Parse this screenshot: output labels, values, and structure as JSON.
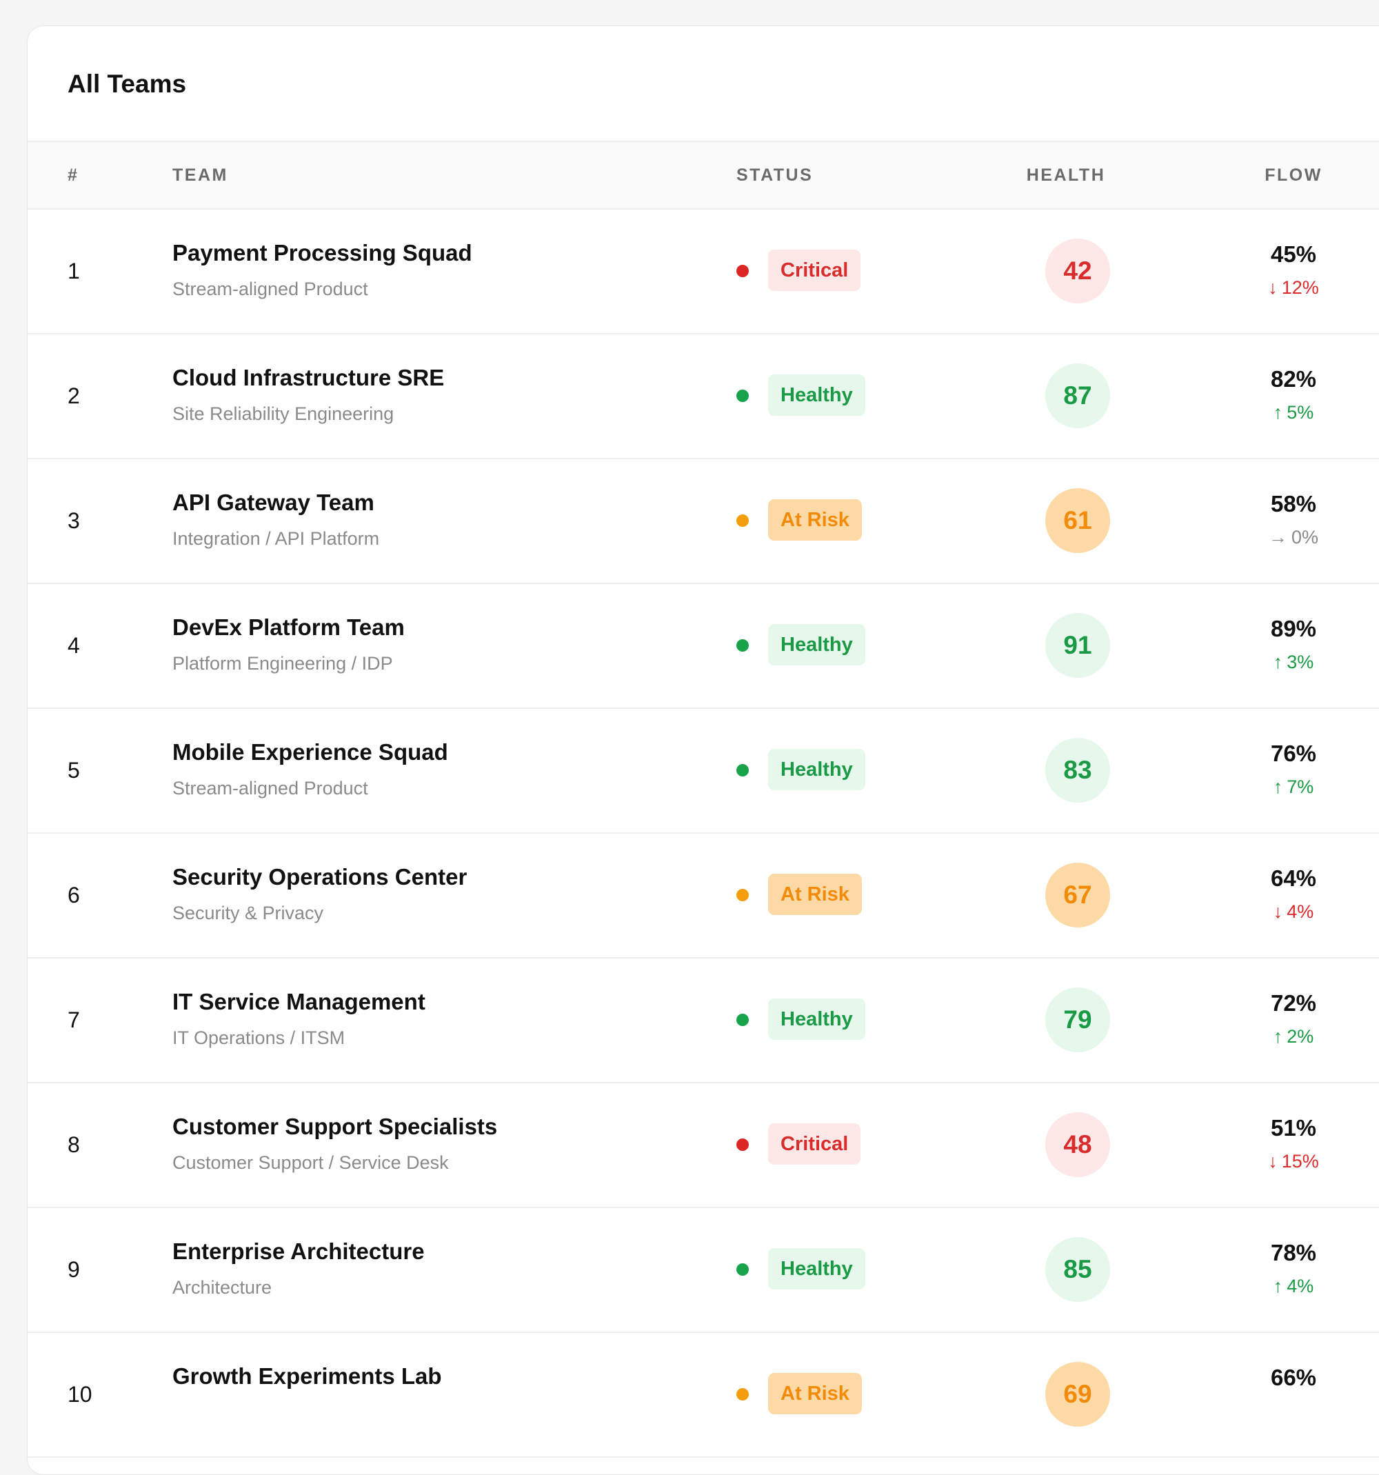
{
  "table": {
    "title": "All Teams",
    "columns": {
      "num": "#",
      "team": "TEAM",
      "status": "STATUS",
      "health": "HEALTH",
      "flow": "FLOW"
    },
    "rows": [
      {
        "num": "1",
        "name": "Payment Processing Squad",
        "type": "Stream-aligned Product",
        "status": "Critical",
        "status_key": "critical",
        "health": "42",
        "flow": "45%",
        "delta": "12%",
        "trend": "down"
      },
      {
        "num": "2",
        "name": "Cloud Infrastructure SRE",
        "type": "Site Reliability Engineering",
        "status": "Healthy",
        "status_key": "healthy",
        "health": "87",
        "flow": "82%",
        "delta": "5%",
        "trend": "up"
      },
      {
        "num": "3",
        "name": "API Gateway Team",
        "type": "Integration / API Platform",
        "status": "At Risk",
        "status_key": "atrisk",
        "health": "61",
        "flow": "58%",
        "delta": "0%",
        "trend": "flat"
      },
      {
        "num": "4",
        "name": "DevEx Platform Team",
        "type": "Platform Engineering / IDP",
        "status": "Healthy",
        "status_key": "healthy",
        "health": "91",
        "flow": "89%",
        "delta": "3%",
        "trend": "up"
      },
      {
        "num": "5",
        "name": "Mobile Experience Squad",
        "type": "Stream-aligned Product",
        "status": "Healthy",
        "status_key": "healthy",
        "health": "83",
        "flow": "76%",
        "delta": "7%",
        "trend": "up"
      },
      {
        "num": "6",
        "name": "Security Operations Center",
        "type": "Security & Privacy",
        "status": "At Risk",
        "status_key": "atrisk",
        "health": "67",
        "flow": "64%",
        "delta": "4%",
        "trend": "down"
      },
      {
        "num": "7",
        "name": "IT Service Management",
        "type": "IT Operations / ITSM",
        "status": "Healthy",
        "status_key": "healthy",
        "health": "79",
        "flow": "72%",
        "delta": "2%",
        "trend": "up"
      },
      {
        "num": "8",
        "name": "Customer Support Specialists",
        "type": "Customer Support / Service Desk",
        "status": "Critical",
        "status_key": "critical",
        "health": "48",
        "flow": "51%",
        "delta": "15%",
        "trend": "down"
      },
      {
        "num": "9",
        "name": "Enterprise Architecture",
        "type": "Architecture",
        "status": "Healthy",
        "status_key": "healthy",
        "health": "85",
        "flow": "78%",
        "delta": "4%",
        "trend": "up"
      },
      {
        "num": "10",
        "name": "Growth Experiments Lab",
        "type": "",
        "status": "At Risk",
        "status_key": "atrisk",
        "health": "69",
        "flow": "66%",
        "delta": "",
        "trend": ""
      }
    ]
  },
  "icons": {
    "down": "arrow-down-icon",
    "up": "arrow-up-icon",
    "flat": "arrow-right-icon"
  },
  "colors": {
    "critical": "#d92c2c",
    "healthy": "#1a9a44",
    "atrisk": "#f28a0a",
    "muted": "#8a8a8a"
  }
}
